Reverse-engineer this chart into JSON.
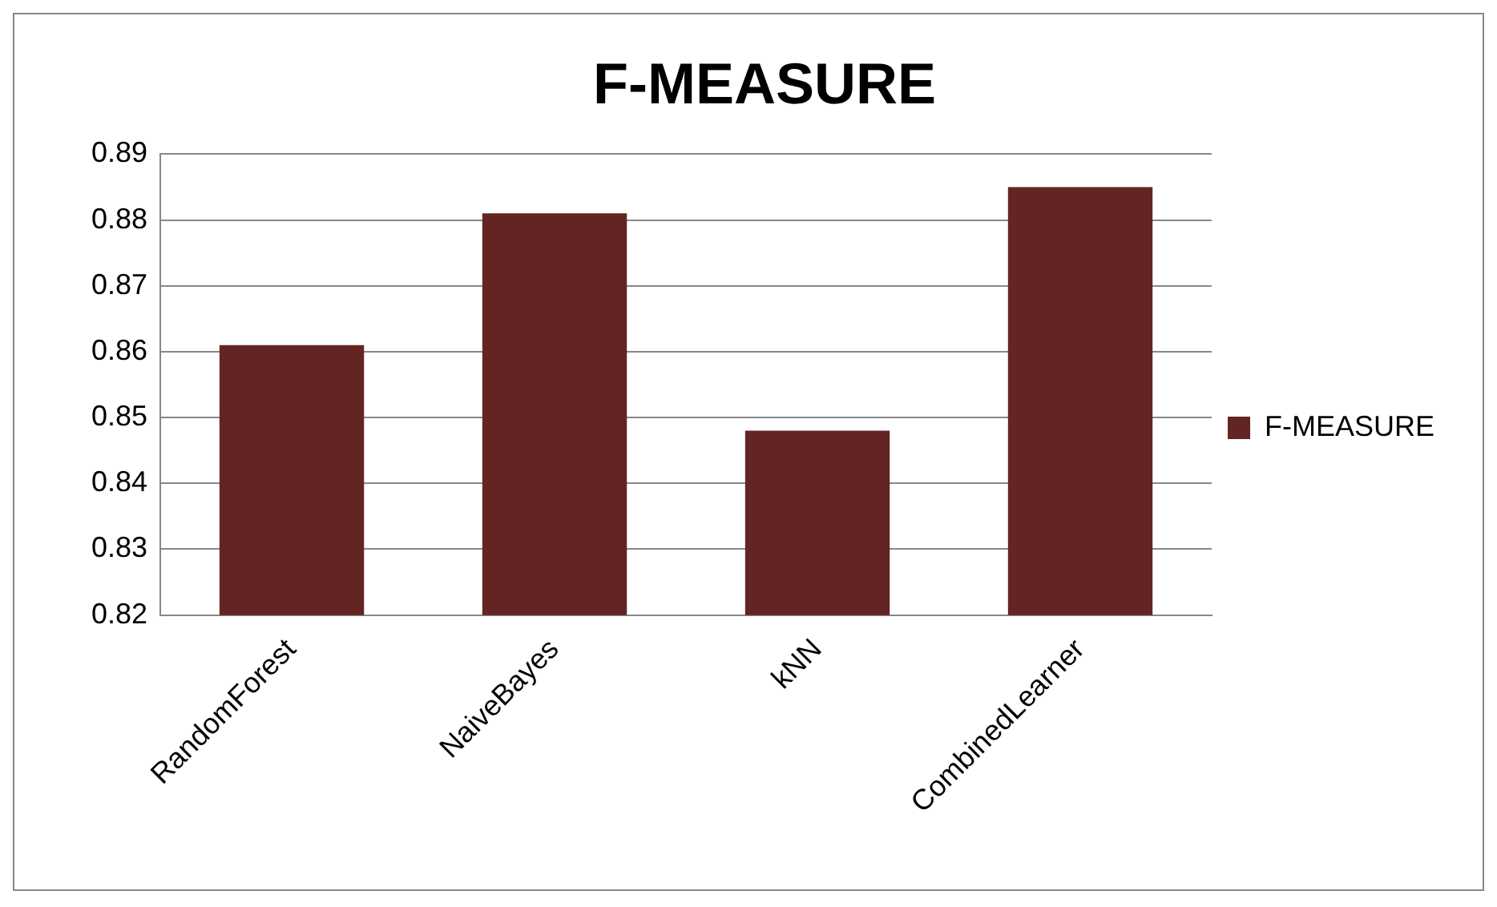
{
  "chart_data": {
    "type": "bar",
    "title": "F-MEASURE",
    "categories": [
      "RandomForest",
      "NaiveBayes",
      "kNN",
      "CombinedLearner"
    ],
    "series": [
      {
        "name": "F-MEASURE",
        "color": "#632523",
        "values": [
          0.861,
          0.881,
          0.848,
          0.885
        ]
      }
    ],
    "ylim": [
      0.82,
      0.89
    ],
    "yticks": [
      0.82,
      0.83,
      0.84,
      0.85,
      0.86,
      0.87,
      0.88,
      0.89
    ],
    "grid": "y",
    "legend": "right"
  }
}
